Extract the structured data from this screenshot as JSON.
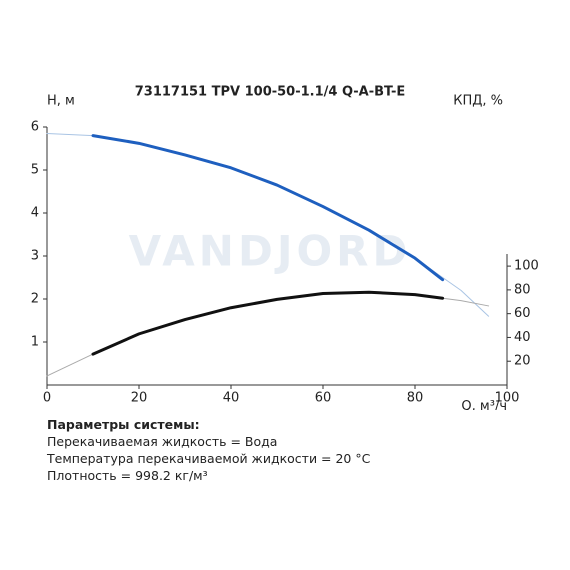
{
  "chart_data": {
    "type": "line",
    "title": "73117151 TPV 100-50-1.1/4 Q-A-BT-E",
    "watermark": "VANDJORD",
    "y_label": "H, м",
    "y2_label": "КПД, %",
    "x_label": "Q, м³/ч",
    "xlim": [
      0,
      100
    ],
    "xticks": [
      0,
      20,
      40,
      60,
      80,
      100
    ],
    "ylim": [
      0,
      6
    ],
    "yticks": [
      1,
      2,
      3,
      4,
      5,
      6
    ],
    "y2lim": [
      0,
      217
    ],
    "y2ticks": [
      20,
      40,
      60,
      80,
      100
    ],
    "grid": false,
    "series": [
      {
        "color": "#a9c4e4",
        "width": 1,
        "x": [
          0,
          10,
          20,
          30,
          40,
          50,
          60,
          70,
          80,
          90,
          96
        ],
        "values": [
          5.85,
          5.8,
          5.62,
          5.35,
          5.05,
          4.65,
          4.15,
          3.6,
          2.95,
          2.2,
          1.6
        ]
      },
      {
        "color": "#1e5fbf",
        "width": 3,
        "x": [
          10,
          20,
          30,
          40,
          50,
          60,
          70,
          80,
          86
        ],
        "values": [
          5.8,
          5.62,
          5.35,
          5.05,
          4.65,
          4.15,
          3.6,
          2.95,
          2.45
        ]
      },
      {
        "color": "#aaaaaa",
        "width": 1,
        "axis": "y2",
        "x": [
          0,
          10,
          20,
          30,
          40,
          50,
          60,
          70,
          80,
          90,
          96
        ],
        "values": [
          7.6,
          26,
          43,
          55,
          65,
          72,
          77,
          78,
          76,
          71,
          66.5
        ]
      },
      {
        "color": "#111111",
        "width": 3,
        "axis": "y2",
        "x": [
          10,
          20,
          30,
          40,
          50,
          60,
          70,
          80,
          86
        ],
        "values": [
          26,
          43,
          55,
          65,
          72,
          77,
          78,
          76,
          73
        ]
      }
    ]
  },
  "parameters": {
    "heading": "Параметры системы:",
    "lines": [
      "Перекачиваемая жидкость = Вода",
      "Температура перекачиваемой жидкости = 20 °C",
      "Плотность = 998.2 кг/м³"
    ]
  }
}
